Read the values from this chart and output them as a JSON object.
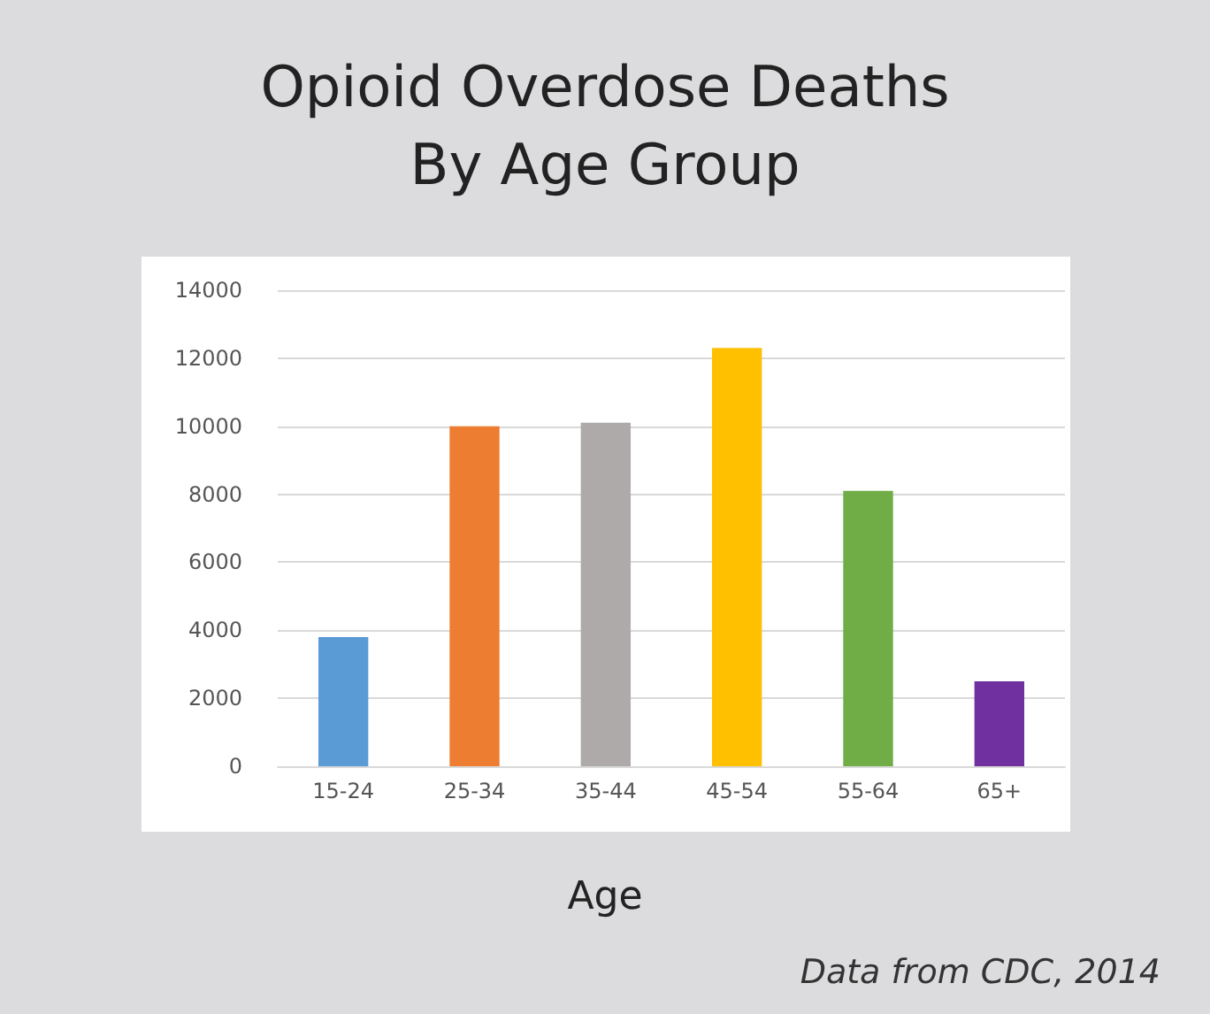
{
  "chart_data": {
    "type": "bar",
    "title": "Opioid Overdose Deaths\nBy Age Group",
    "xlabel": "Age",
    "categories": [
      "15-24",
      "25-34",
      "35-44",
      "45-54",
      "55-64",
      "65+"
    ],
    "values": [
      3800,
      10000,
      10100,
      12300,
      8100,
      2500
    ],
    "colors": [
      "#5b9bd5",
      "#ed7d31",
      "#aeaaaa",
      "#ffc000",
      "#70ad47",
      "#7030a0"
    ],
    "ylim": [
      0,
      14000
    ],
    "yticks": [
      0,
      2000,
      4000,
      6000,
      8000,
      10000,
      12000,
      14000
    ],
    "grid": "y",
    "annotations": [
      "Data from CDC, 2014"
    ]
  }
}
